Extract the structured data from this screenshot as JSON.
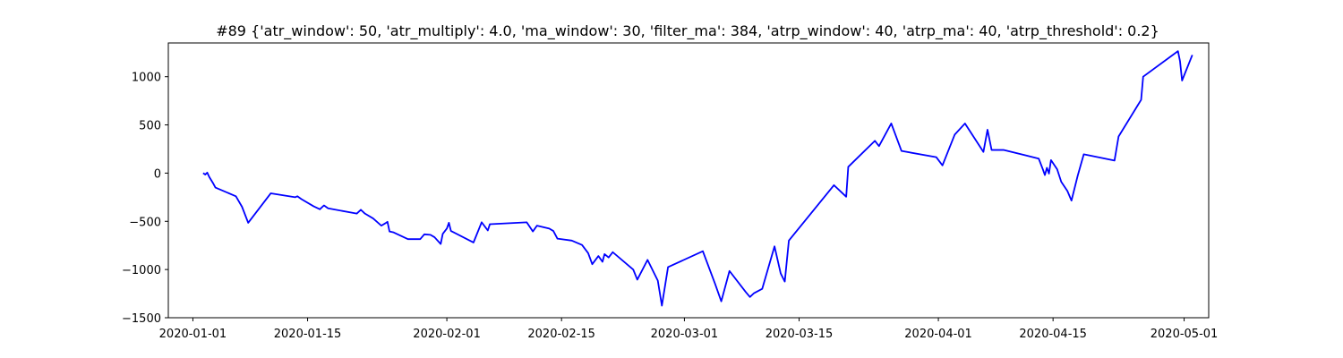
{
  "chart_data": {
    "type": "line",
    "title": "#89 {'atr_window': 50, 'atr_multiply': 4.0, 'ma_window': 30, 'filter_ma': 384, 'atrp_window': 40, 'atrp_ma': 40, 'atrp_threshold': 0.2}",
    "xlabel": "",
    "ylabel": "",
    "xlim": [
      "2019-12-29",
      "2020-05-04"
    ],
    "ylim": [
      -1500,
      1350
    ],
    "grid": false,
    "x_ticks": [
      "2020-01-01",
      "2020-01-15",
      "2020-02-01",
      "2020-02-15",
      "2020-03-01",
      "2020-03-15",
      "2020-04-01",
      "2020-04-15",
      "2020-05-01"
    ],
    "y_ticks": [
      1000,
      500,
      0,
      -500,
      -1000,
      -1500
    ],
    "series": [
      {
        "color": "#0000ff",
        "points": [
          [
            "2020-01-02T06:00",
            0
          ],
          [
            "2020-01-02T12:00",
            -15
          ],
          [
            "2020-01-02T18:00",
            5
          ],
          [
            "2020-01-03T00:00",
            -40
          ],
          [
            "2020-01-03T12:00",
            -110
          ],
          [
            "2020-01-03T18:00",
            -150
          ],
          [
            "2020-01-06T06:00",
            -240
          ],
          [
            "2020-01-07T00:00",
            -350
          ],
          [
            "2020-01-07T18:00",
            -515
          ],
          [
            "2020-01-10T12:00",
            -210
          ],
          [
            "2020-01-13T12:00",
            -250
          ],
          [
            "2020-01-13T18:00",
            -240
          ],
          [
            "2020-01-14T06:00",
            -270
          ],
          [
            "2020-01-15T18:00",
            -345
          ],
          [
            "2020-01-16T12:00",
            -375
          ],
          [
            "2020-01-17T00:00",
            -335
          ],
          [
            "2020-01-17T12:00",
            -365
          ],
          [
            "2020-01-21T00:00",
            -420
          ],
          [
            "2020-01-21T12:00",
            -380
          ],
          [
            "2020-01-22T00:00",
            -420
          ],
          [
            "2020-01-23T00:00",
            -470
          ],
          [
            "2020-01-24T00:00",
            -545
          ],
          [
            "2020-01-24T12:00",
            -520
          ],
          [
            "2020-01-24T18:00",
            -505
          ],
          [
            "2020-01-25T00:00",
            -605
          ],
          [
            "2020-01-25T12:00",
            -615
          ],
          [
            "2020-01-27T06:00",
            -685
          ],
          [
            "2020-01-28T18:00",
            -685
          ],
          [
            "2020-01-29T06:00",
            -635
          ],
          [
            "2020-01-30T00:00",
            -640
          ],
          [
            "2020-01-30T12:00",
            -665
          ],
          [
            "2020-01-31T06:00",
            -735
          ],
          [
            "2020-01-31T12:00",
            -630
          ],
          [
            "2020-02-01T00:00",
            -575
          ],
          [
            "2020-02-01T06:00",
            -515
          ],
          [
            "2020-02-01T12:00",
            -600
          ],
          [
            "2020-02-04T06:00",
            -720
          ],
          [
            "2020-02-05T06:00",
            -510
          ],
          [
            "2020-02-06T00:00",
            -595
          ],
          [
            "2020-02-06T06:00",
            -530
          ],
          [
            "2020-02-10T18:00",
            -510
          ],
          [
            "2020-02-11T12:00",
            -605
          ],
          [
            "2020-02-12T00:00",
            -545
          ],
          [
            "2020-02-13T12:00",
            -575
          ],
          [
            "2020-02-14T00:00",
            -600
          ],
          [
            "2020-02-14T12:00",
            -680
          ],
          [
            "2020-02-16T06:00",
            -700
          ],
          [
            "2020-02-17T12:00",
            -745
          ],
          [
            "2020-02-18T06:00",
            -830
          ],
          [
            "2020-02-18T18:00",
            -945
          ],
          [
            "2020-02-19T12:00",
            -860
          ],
          [
            "2020-02-20T00:00",
            -920
          ],
          [
            "2020-02-20T06:00",
            -840
          ],
          [
            "2020-02-20T18:00",
            -875
          ],
          [
            "2020-02-21T06:00",
            -820
          ],
          [
            "2020-02-23T18:00",
            -1000
          ],
          [
            "2020-02-24T06:00",
            -1105
          ],
          [
            "2020-02-25T12:00",
            -900
          ],
          [
            "2020-02-26T18:00",
            -1115
          ],
          [
            "2020-02-27T06:00",
            -1375
          ],
          [
            "2020-02-28T00:00",
            -975
          ],
          [
            "2020-03-03T06:00",
            -810
          ],
          [
            "2020-03-04T18:00",
            -1150
          ],
          [
            "2020-03-05T12:00",
            -1330
          ],
          [
            "2020-03-06T12:00",
            -1015
          ],
          [
            "2020-03-08T12:00",
            -1235
          ],
          [
            "2020-03-09T00:00",
            -1285
          ],
          [
            "2020-03-09T12:00",
            -1245
          ],
          [
            "2020-03-10T12:00",
            -1200
          ],
          [
            "2020-03-12T00:00",
            -760
          ],
          [
            "2020-03-12T18:00",
            -1040
          ],
          [
            "2020-03-13T06:00",
            -1125
          ],
          [
            "2020-03-13T18:00",
            -700
          ],
          [
            "2020-03-19T06:00",
            -125
          ],
          [
            "2020-03-20T18:00",
            -245
          ],
          [
            "2020-03-21T00:00",
            65
          ],
          [
            "2020-03-24T06:00",
            335
          ],
          [
            "2020-03-24T18:00",
            280
          ],
          [
            "2020-03-26T06:00",
            515
          ],
          [
            "2020-03-27T12:00",
            230
          ],
          [
            "2020-03-31T18:00",
            165
          ],
          [
            "2020-04-01T12:00",
            80
          ],
          [
            "2020-04-03T00:00",
            400
          ],
          [
            "2020-04-04T06:00",
            515
          ],
          [
            "2020-04-06T12:00",
            220
          ],
          [
            "2020-04-07T00:00",
            450
          ],
          [
            "2020-04-07T12:00",
            240
          ],
          [
            "2020-04-09T00:00",
            240
          ],
          [
            "2020-04-13T06:00",
            150
          ],
          [
            "2020-04-13T18:00",
            40
          ],
          [
            "2020-04-14T00:00",
            -20
          ],
          [
            "2020-04-14T06:00",
            55
          ],
          [
            "2020-04-14T12:00",
            -5
          ],
          [
            "2020-04-14T18:00",
            135
          ],
          [
            "2020-04-15T12:00",
            40
          ],
          [
            "2020-04-16T00:00",
            -90
          ],
          [
            "2020-04-16T18:00",
            -185
          ],
          [
            "2020-04-17T06:00",
            -285
          ],
          [
            "2020-04-18T00:00",
            -30
          ],
          [
            "2020-04-18T18:00",
            195
          ],
          [
            "2020-04-22T12:00",
            130
          ],
          [
            "2020-04-23T00:00",
            380
          ],
          [
            "2020-04-25T18:00",
            760
          ],
          [
            "2020-04-26T00:00",
            1000
          ],
          [
            "2020-04-30T06:00",
            1265
          ],
          [
            "2020-04-30T12:00",
            1160
          ],
          [
            "2020-04-30T18:00",
            960
          ],
          [
            "2020-05-02T00:00",
            1225
          ]
        ]
      }
    ]
  }
}
